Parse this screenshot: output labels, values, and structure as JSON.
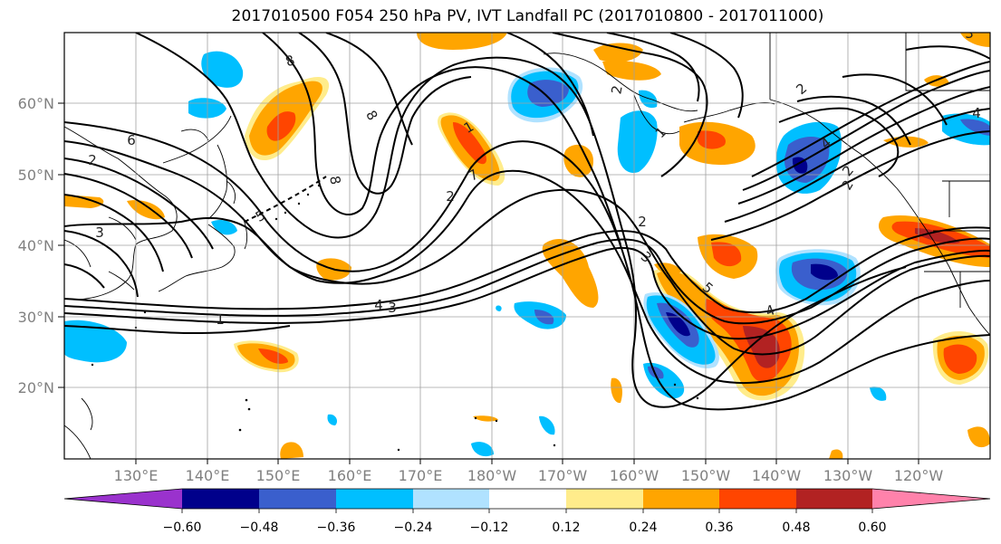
{
  "title": "2017010500 F054 250 hPa PV, IVT Landfall PC (2017010800 - 2017011000)",
  "map": {
    "lat_labels": [
      "60°N",
      "50°N",
      "40°N",
      "30°N",
      "20°N"
    ],
    "lon_labels": [
      "130°E",
      "140°E",
      "150°E",
      "160°E",
      "170°E",
      "180°W",
      "170°W",
      "160°W",
      "150°W",
      "140°W",
      "130°W",
      "120°W"
    ],
    "contour_labels": [
      "8",
      "6",
      "5",
      "2",
      "3",
      "1",
      "2",
      "8",
      "7",
      "1",
      "2",
      "3",
      "5",
      "4",
      "3",
      "4",
      "8",
      "2",
      "1",
      "2",
      "4",
      "2",
      "4",
      "3",
      "2"
    ]
  },
  "colorbar": {
    "tick_labels": [
      "−0.60",
      "−0.48",
      "−0.36",
      "−0.24",
      "−0.12",
      "0.12",
      "0.24",
      "0.36",
      "0.48",
      "0.60"
    ],
    "colors": [
      "#9a32cd",
      "#00008b",
      "#3a5fcd",
      "#00bfff",
      "#b0e2ff",
      "#ffffff",
      "#ffec8b",
      "#ffa500",
      "#ff4500",
      "#b22222",
      "#ff82ab"
    ]
  }
}
